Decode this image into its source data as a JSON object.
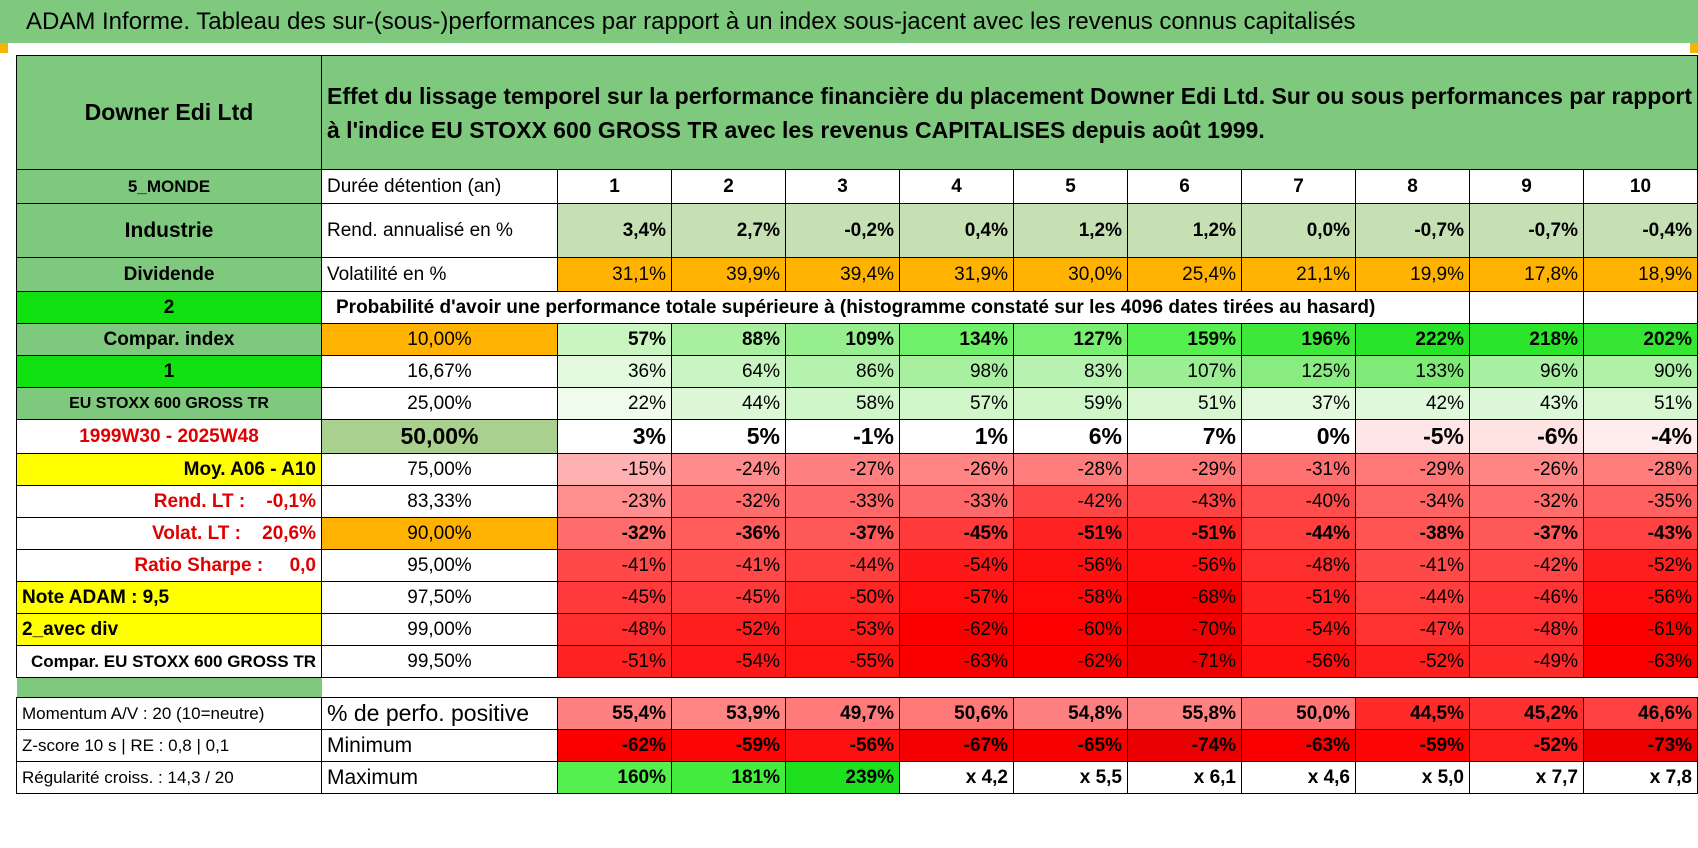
{
  "title": "ADAM Informe. Tableau des sur-(sous-)performances par rapport à un index sous-jacent avec les revenus connus capitalisés",
  "header": {
    "company": "Downer Edi Ltd",
    "description": "Effet du lissage temporel sur la performance financière du placement Downer Edi Ltd. Sur ou sous performances par rapport à l'indice EU STOXX 600 GROSS TR avec les revenus CAPITALISES depuis août 1999."
  },
  "left_labels": {
    "region": "5_MONDE",
    "sector": "Industrie",
    "dividend": "Dividende",
    "code1": "2",
    "compar_index": "Compar. index",
    "code2": "1",
    "index_name": "EU STOXX 600 GROSS TR",
    "period": "1999W30 - 2025W48",
    "moy": "Moy. A06 - A10",
    "rend_lt": "Rend. LT :    -0,1%",
    "volat_lt": "Volat. LT :    20,6%",
    "sharpe": "Ratio Sharpe :     0,0",
    "note": "Note ADAM : 9,5",
    "avec_div": "2_avec div",
    "compar_full": "Compar. EU STOXX 600 GROSS TR",
    "momentum": "Momentum A/V : 20 (10=neutre)",
    "zscore": "Z-score 10 s | RE : 0,8 | 0,1",
    "regularite": "Régularité croiss. : 14,3 / 20"
  },
  "row_labels": {
    "duree": "Durée détention (an)",
    "rend": "Rend. annualisé en %",
    "vol": "Volatilité en %",
    "prob_title": "Probabilité d'avoir une performance totale supérieure à (histogramme constaté sur les 4096 dates tirées au hasard)",
    "pos": "% de perfo. positive",
    "min": "Minimum",
    "max": "Maximum"
  },
  "years": [
    "1",
    "2",
    "3",
    "4",
    "5",
    "6",
    "7",
    "8",
    "9",
    "10"
  ],
  "rend": [
    "3,4%",
    "2,7%",
    "-0,2%",
    "0,4%",
    "1,2%",
    "1,2%",
    "0,0%",
    "-0,7%",
    "-0,7%",
    "-0,4%"
  ],
  "vol": [
    "31,1%",
    "39,9%",
    "39,4%",
    "31,9%",
    "30,0%",
    "25,4%",
    "21,1%",
    "19,9%",
    "17,8%",
    "18,9%"
  ],
  "quantiles": [
    {
      "p": "10,00%",
      "vals": [
        "57%",
        "88%",
        "109%",
        "134%",
        "127%",
        "159%",
        "196%",
        "222%",
        "218%",
        "202%"
      ],
      "colors": [
        "#c8f5c0",
        "#a8f0a0",
        "#96ee8e",
        "#6ef068",
        "#78ef70",
        "#55f04f",
        "#3de83a",
        "#28e428",
        "#2ae52a",
        "#35e633"
      ]
    },
    {
      "p": "16,67%",
      "vals": [
        "36%",
        "64%",
        "86%",
        "98%",
        "83%",
        "107%",
        "125%",
        "133%",
        "96%",
        "90%"
      ],
      "colors": [
        "#e4fadf",
        "#c9f5c2",
        "#b5f2ad",
        "#a8f0a0",
        "#b8f2b0",
        "#9cee94",
        "#88ec80",
        "#7fea78",
        "#aaf0a2",
        "#b0f1a8"
      ]
    },
    {
      "p": "25,00%",
      "vals": [
        "22%",
        "44%",
        "58%",
        "57%",
        "59%",
        "51%",
        "37%",
        "42%",
        "43%",
        "51%"
      ],
      "colors": [
        "#effcec",
        "#dcf8d6",
        "#cff6c8",
        "#d0f6c9",
        "#cef6c7",
        "#d6f7d0",
        "#e3f9de",
        "#def8d9",
        "#ddf8d8",
        "#d6f7d0"
      ]
    },
    {
      "p": "50,00%",
      "vals": [
        "3%",
        "5%",
        "-1%",
        "1%",
        "6%",
        "7%",
        "0%",
        "-5%",
        "-6%",
        "-4%"
      ],
      "colors": [
        "#ffffff",
        "#ffffff",
        "#ffffff",
        "#ffffff",
        "#ffffff",
        "#ffffff",
        "#ffffff",
        "#ffe6e6",
        "#ffe2e2",
        "#ffecec"
      ]
    },
    {
      "p": "75,00%",
      "vals": [
        "-15%",
        "-24%",
        "-27%",
        "-26%",
        "-28%",
        "-29%",
        "-31%",
        "-29%",
        "-26%",
        "-28%"
      ],
      "colors": [
        "#ffb0b0",
        "#ff8c8c",
        "#ff8080",
        "#ff8484",
        "#ff7c7c",
        "#ff7878",
        "#ff7070",
        "#ff7878",
        "#ff8484",
        "#ff7c7c"
      ]
    },
    {
      "p": "83,33%",
      "vals": [
        "-23%",
        "-32%",
        "-33%",
        "-33%",
        "-42%",
        "-43%",
        "-40%",
        "-34%",
        "-32%",
        "-35%"
      ],
      "colors": [
        "#ff8e8e",
        "#ff6c6c",
        "#ff6868",
        "#ff6868",
        "#ff4646",
        "#ff4242",
        "#ff4c4c",
        "#ff6464",
        "#ff6c6c",
        "#ff6060"
      ]
    },
    {
      "p": "90,00%",
      "vals": [
        "-32%",
        "-36%",
        "-37%",
        "-45%",
        "-51%",
        "-51%",
        "-44%",
        "-38%",
        "-37%",
        "-43%"
      ],
      "colors": [
        "#ff6c6c",
        "#ff5c5c",
        "#ff5858",
        "#ff3a3a",
        "#ff2222",
        "#ff2222",
        "#ff3e3e",
        "#ff5454",
        "#ff5858",
        "#ff4242"
      ]
    },
    {
      "p": "95,00%",
      "vals": [
        "-41%",
        "-41%",
        "-44%",
        "-54%",
        "-56%",
        "-56%",
        "-48%",
        "-41%",
        "-42%",
        "-52%"
      ],
      "colors": [
        "#ff4848",
        "#ff4848",
        "#ff3e3e",
        "#ff1818",
        "#ff1010",
        "#ff1010",
        "#ff2e2e",
        "#ff4848",
        "#ff4646",
        "#ff1e1e"
      ]
    },
    {
      "p": "97,50%",
      "vals": [
        "-45%",
        "-45%",
        "-50%",
        "-57%",
        "-58%",
        "-68%",
        "-51%",
        "-44%",
        "-46%",
        "-56%"
      ],
      "colors": [
        "#ff3a3a",
        "#ff3a3a",
        "#ff2626",
        "#ff0c0c",
        "#ff0808",
        "#f40000",
        "#ff2222",
        "#ff3e3e",
        "#ff3434",
        "#ff1010"
      ]
    },
    {
      "p": "99,00%",
      "vals": [
        "-48%",
        "-52%",
        "-53%",
        "-62%",
        "-60%",
        "-70%",
        "-54%",
        "-47%",
        "-48%",
        "-61%"
      ],
      "colors": [
        "#ff2e2e",
        "#ff1e1e",
        "#ff1a1a",
        "#fb0000",
        "#ff0000",
        "#f00000",
        "#ff1818",
        "#ff3232",
        "#ff2e2e",
        "#fc0000"
      ]
    },
    {
      "p": "99,50%",
      "vals": [
        "-51%",
        "-54%",
        "-55%",
        "-63%",
        "-62%",
        "-71%",
        "-56%",
        "-52%",
        "-49%",
        "-63%"
      ],
      "colors": [
        "#ff2222",
        "#ff1818",
        "#ff1414",
        "#fa0000",
        "#fb0000",
        "#ee0000",
        "#ff1010",
        "#ff1e1e",
        "#ff2a2a",
        "#fa0000"
      ]
    }
  ],
  "positive": [
    "55,4%",
    "53,9%",
    "49,7%",
    "50,6%",
    "54,8%",
    "55,8%",
    "50,0%",
    "44,5%",
    "45,2%",
    "46,6%"
  ],
  "positive_colors": [
    "#ff8080",
    "#ff8484",
    "#ff7a7a",
    "#ff7878",
    "#ff8080",
    "#ff8282",
    "#ff7474",
    "#ff2a2a",
    "#ff3030",
    "#ff4040"
  ],
  "minimum": [
    "-62%",
    "-59%",
    "-56%",
    "-67%",
    "-65%",
    "-74%",
    "-63%",
    "-59%",
    "-52%",
    "-73%"
  ],
  "minimum_colors": [
    "#fb0000",
    "#ff0606",
    "#ff1010",
    "#f40000",
    "#f80000",
    "#ea0000",
    "#fa0000",
    "#ff0606",
    "#ff1e1e",
    "#ec0000"
  ],
  "maximum": [
    "160%",
    "181%",
    "239%",
    "x 4,2",
    "x 5,5",
    "x 6,1",
    "x 4,6",
    "x 5,0",
    "x 7,7",
    "x 7,8"
  ],
  "maximum_colors": [
    "#55f04f",
    "#44ec40",
    "#1fe01f",
    "#ffffff",
    "#ffffff",
    "#ffffff",
    "#ffffff",
    "#ffffff",
    "#ffffff",
    "#ffffff"
  ],
  "colors": {
    "green_label": "#7fc97f",
    "bright_green": "#11e011",
    "orange": "#ffb300",
    "yellow": "#ffff00",
    "rend_bg": "#c6e0b4",
    "median_label_bg": "#a9d08e",
    "title_red": "#e00000"
  }
}
